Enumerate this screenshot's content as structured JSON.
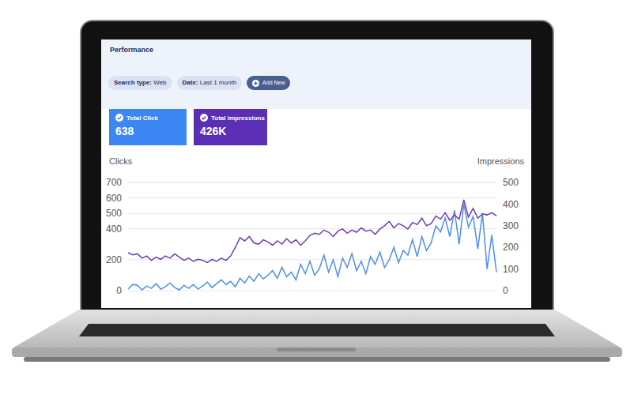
{
  "page": {
    "section": "Performance",
    "filters": [
      {
        "label": "Search type:",
        "value": "Web"
      },
      {
        "label": "Date:",
        "value": "Last 1 month"
      }
    ],
    "button": "Add New",
    "cards": [
      {
        "label": "Total Click",
        "value": "638",
        "color": "#3d87f5"
      },
      {
        "label": "Total impressions",
        "value": "426K",
        "color": "#5b2fb5"
      }
    ]
  },
  "chart_data": {
    "type": "line",
    "ylabel": "Clicks",
    "y2label": "Impressions",
    "categories": [
      null,
      null,
      null,
      null,
      null,
      null,
      null,
      null,
      null,
      null,
      null,
      null,
      null,
      null,
      null,
      null,
      null,
      null,
      null,
      null,
      null,
      null,
      null,
      null,
      null,
      null,
      null,
      null,
      null,
      null,
      null,
      null,
      null,
      null,
      null,
      null,
      null,
      null,
      null,
      null,
      null,
      null,
      null,
      null,
      null,
      null,
      null,
      null,
      null,
      null,
      null,
      null,
      null,
      null,
      null,
      null,
      null,
      null,
      null,
      null,
      null,
      null,
      null,
      null,
      null,
      null,
      null,
      null,
      null,
      null,
      null,
      null,
      null,
      null,
      null,
      null,
      null,
      null,
      null,
      null
    ],
    "series": [
      {
        "name": "Clicks",
        "color": "#4f8ff0",
        "values": [
          10,
          40,
          35,
          5,
          30,
          15,
          45,
          10,
          25,
          50,
          20,
          5,
          35,
          15,
          40,
          10,
          30,
          55,
          20,
          45,
          70,
          40,
          60,
          25,
          80,
          50,
          95,
          60,
          110,
          75,
          100,
          130,
          80,
          150,
          90,
          120,
          70,
          170,
          110,
          190,
          100,
          140,
          230,
          120,
          200,
          90,
          210,
          150,
          240,
          130,
          190,
          110,
          220,
          170,
          250,
          150,
          200,
          280,
          180,
          260,
          230,
          330,
          220,
          350,
          260,
          310,
          420,
          380,
          470,
          350,
          520,
          300,
          560,
          410,
          480,
          270,
          500,
          140,
          360,
          120
        ]
      },
      {
        "name": "Impressions",
        "color": "#6a3fb5",
        "axis": "y2",
        "values": [
          175,
          165,
          170,
          150,
          160,
          140,
          155,
          145,
          160,
          150,
          170,
          155,
          140,
          150,
          135,
          145,
          140,
          130,
          145,
          135,
          150,
          140,
          160,
          200,
          245,
          230,
          250,
          220,
          215,
          235,
          225,
          210,
          230,
          215,
          240,
          220,
          235,
          210,
          230,
          255,
          265,
          260,
          280,
          270,
          250,
          275,
          285,
          265,
          280,
          270,
          290,
          275,
          280,
          260,
          285,
          300,
          320,
          290,
          310,
          300,
          285,
          315,
          305,
          335,
          300,
          310,
          345,
          330,
          360,
          325,
          350,
          330,
          420,
          340,
          380,
          335,
          355,
          350,
          360,
          345
        ]
      }
    ],
    "ylim": [
      0,
      700
    ],
    "yticks": [
      0,
      200,
      400,
      500,
      600,
      700
    ],
    "y2lim": [
      0,
      500
    ],
    "y2ticks": [
      0,
      100,
      200,
      300,
      400,
      500
    ],
    "grid": true,
    "tick_labels": "y"
  }
}
